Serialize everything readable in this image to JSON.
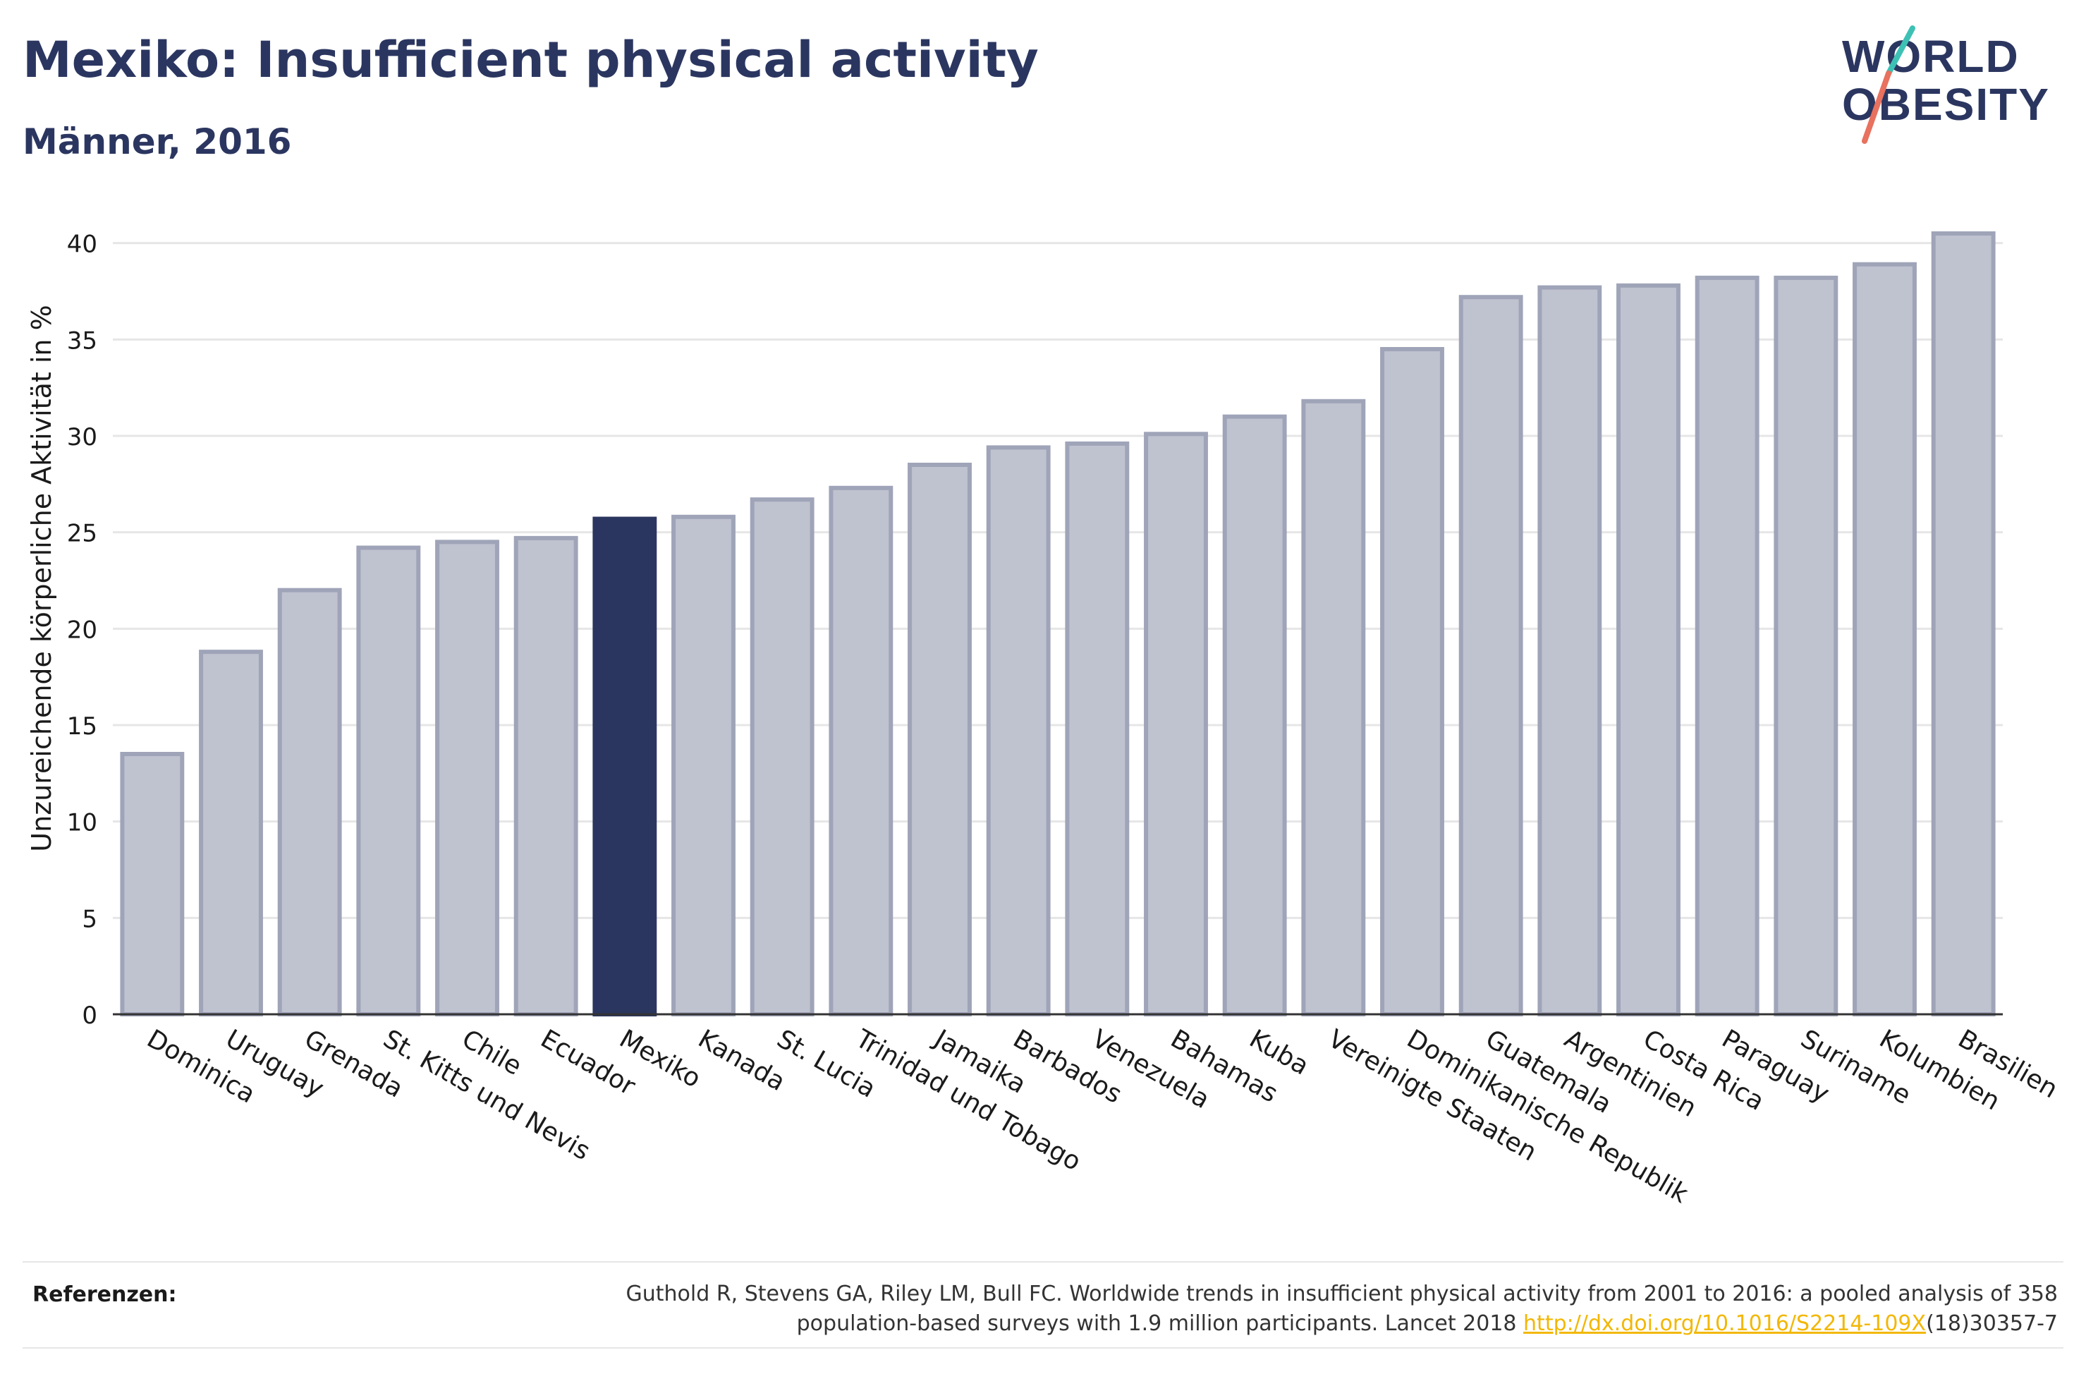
{
  "header": {
    "title": "Mexiko: Insufficient physical activity",
    "subtitle": "Männer, 2016"
  },
  "logo": {
    "line1": "WORLD",
    "line2": "OBESITY"
  },
  "chart_data": {
    "type": "bar",
    "categories": [
      "Dominica",
      "Uruguay",
      "Grenada",
      "St. Kitts und Nevis",
      "Chile",
      "Ecuador",
      "Mexiko",
      "Kanada",
      "St. Lucia",
      "Trinidad und Tobago",
      "Jamaika",
      "Barbados",
      "Venezuela",
      "Bahamas",
      "Kuba",
      "Vereinigte Staaten",
      "Dominikanische Republik",
      "Guatemala",
      "Argentinien",
      "Costa Rica",
      "Paraguay",
      "Suriname",
      "Kolumbien",
      "Brasilien"
    ],
    "values": [
      13.5,
      18.8,
      22.0,
      24.2,
      24.5,
      24.7,
      25.7,
      25.8,
      26.7,
      27.3,
      28.5,
      29.4,
      29.6,
      30.1,
      31.0,
      31.8,
      34.5,
      37.2,
      37.7,
      37.8,
      38.2,
      38.2,
      38.9,
      40.5
    ],
    "highlight": "Mexiko",
    "xlabel": "",
    "ylabel": "Unzureichende körperliche Aktivität in %",
    "ylim": [
      0,
      42
    ],
    "yticks": [
      0,
      5,
      10,
      15,
      20,
      25,
      30,
      35,
      40
    ],
    "grid": true,
    "colors": {
      "bar": "#bfc2cf",
      "bar_edge": "#9fa4b8",
      "highlight": "#2b3660",
      "grid": "#e6e6e6",
      "axis": "#333333"
    }
  },
  "footer": {
    "label": "Referenzen:",
    "text": "Guthold R, Stevens GA, Riley LM, Bull FC. Worldwide trends in insufficient physical activity from 2001 to 2016: a pooled analysis of 358 population-based surveys with 1.9 million participants. Lancet 2018 ",
    "link": "http://dx.doi.org/10.1016/S2214-109X",
    "text_after": "(18)30357-7"
  }
}
